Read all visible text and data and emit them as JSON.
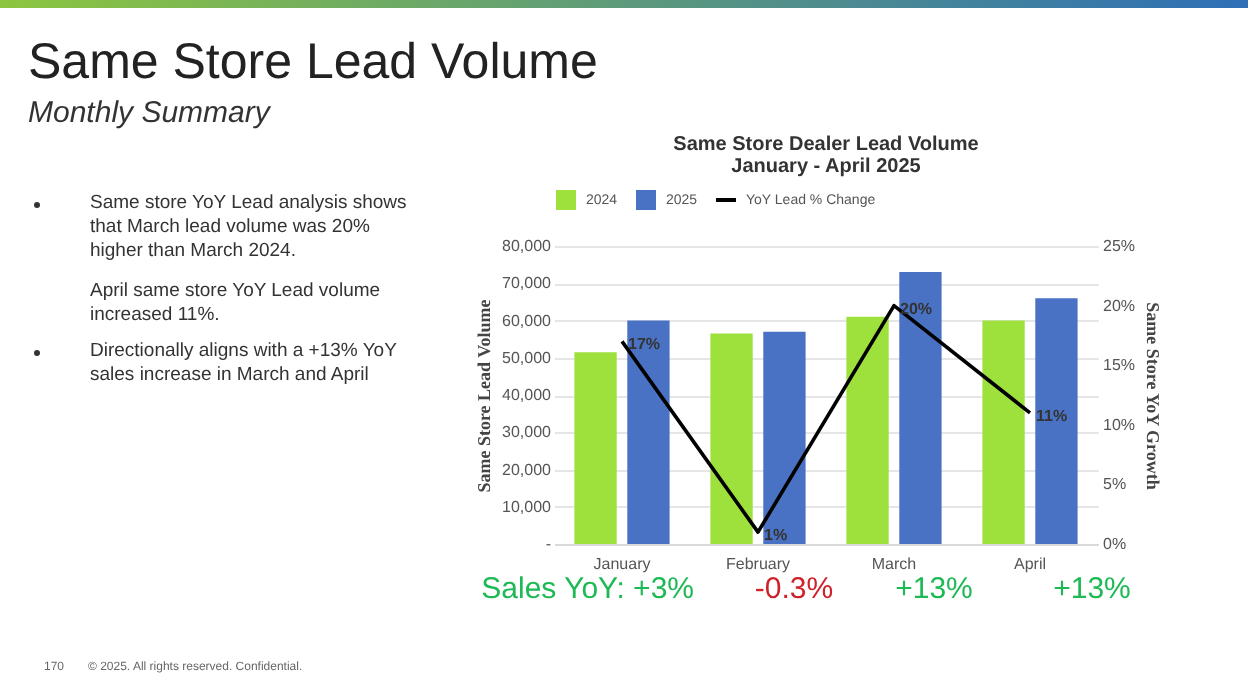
{
  "chart_data": {
    "type": "bar",
    "title": "Same Store Dealer Lead Volume",
    "subtitle": "January - April 2025",
    "ylabel": "Same Store Lead Volume",
    "y2label": "Same Store YoY Growth",
    "categories": [
      "January",
      "February",
      "March",
      "April"
    ],
    "series": [
      {
        "name": "2024",
        "color": "#9ee03c",
        "values": [
          51500,
          56500,
          61000,
          60000
        ]
      },
      {
        "name": "2025",
        "color": "#4a72c4",
        "values": [
          60000,
          57000,
          73000,
          66000
        ]
      },
      {
        "name": "YoY Lead  % Change",
        "type": "line",
        "axis": "y2",
        "color": "#000000",
        "values": [
          17,
          1,
          20,
          11
        ],
        "value_labels": [
          "17%",
          "1%",
          "20%",
          "11%"
        ]
      }
    ],
    "ylim": [
      0,
      80000
    ],
    "yticks": [
      {
        "value": 0,
        "label": "-"
      },
      {
        "value": 10000,
        "label": "10,000"
      },
      {
        "value": 20000,
        "label": "20,000"
      },
      {
        "value": 30000,
        "label": "30,000"
      },
      {
        "value": 40000,
        "label": "40,000"
      },
      {
        "value": 50000,
        "label": "50,000"
      },
      {
        "value": 60000,
        "label": "60,000"
      },
      {
        "value": 70000,
        "label": "70,000"
      },
      {
        "value": 80000,
        "label": "80,000"
      }
    ],
    "y2lim": [
      0,
      25
    ],
    "y2ticks": [
      {
        "value": 0,
        "label": "0%"
      },
      {
        "value": 5,
        "label": "5%"
      },
      {
        "value": 10,
        "label": "10%"
      },
      {
        "value": 15,
        "label": "15%"
      },
      {
        "value": 20,
        "label": "20%"
      },
      {
        "value": 25,
        "label": "25%"
      }
    ],
    "grid": "y",
    "legend": "top",
    "marker": "none",
    "line_style": "solid",
    "annotations": [
      "Same Store Lead Volume",
      "Monthly Summary",
      "Same store YoY Lead analysis shows that March lead volume was 20% higher than March 2024.",
      "April same store YoY Lead volume increased 11%.",
      "Directionally aligns with a +13% YoY sales increase in March and April",
      "Sales YoY: +3%",
      "-0.3%",
      "+13%",
      "+13%",
      "170",
      "© 2025. All rights reserved. Confidential."
    ]
  }
}
